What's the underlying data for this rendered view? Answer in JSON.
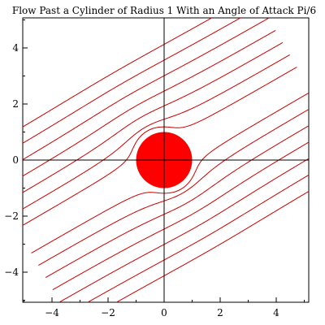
{
  "chart_data": {
    "type": "line",
    "title": "Flow Past a Cylinder of Radius 1 With an Angle of Attack Pi/6",
    "xlabel": "",
    "ylabel": "",
    "xlim": [
      -5,
      5
    ],
    "ylim": [
      -5,
      5
    ],
    "x_ticks": [
      -4,
      -2,
      0,
      2,
      4
    ],
    "x_tick_labels": [
      "−4",
      "−2",
      "0",
      "2",
      "4"
    ],
    "y_ticks": [
      -4,
      -2,
      0,
      2,
      4
    ],
    "y_tick_labels": [
      "−4",
      "−2",
      "0",
      "2",
      "4"
    ],
    "minor_tick_step": 1,
    "grid": false,
    "line_color": "#cc0000",
    "cylinder": {
      "center": [
        0,
        0
      ],
      "radius": 1,
      "color": "#ff0000"
    },
    "angle_of_attack": 0.5236,
    "stream_offsets": [
      -3.5,
      -3.0,
      -2.5,
      -2.0,
      -1.5,
      -1.0,
      -0.5,
      0.5,
      1.0,
      1.5,
      2.0,
      2.5,
      3.0,
      3.5
    ],
    "stream_extent": [
      -5.7,
      5.7
    ]
  }
}
